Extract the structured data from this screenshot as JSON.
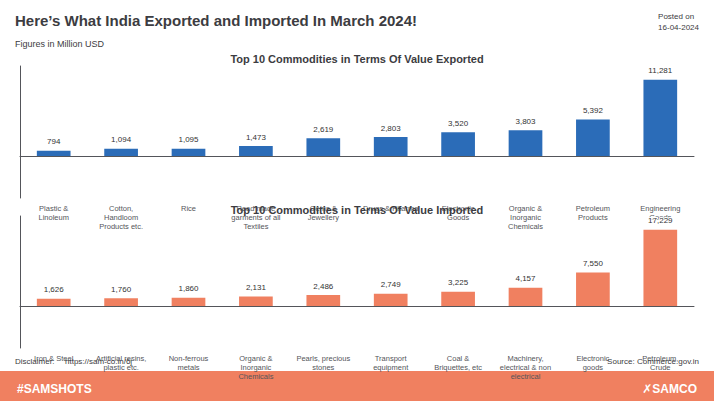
{
  "chart_data": [
    {
      "type": "bar",
      "title": "Top 10 Commodities in Terms Of Value Exported",
      "annotations": [
        "Here’s What India Exported and Imported In March 2024!",
        "Posted on\n16-04-2024",
        "Figures in Million USD"
      ],
      "categories": [
        "Plastic &\nLinoleum",
        "Cotton,\nHandloom\nProducts etc.",
        "Rice",
        "Read made\ngarments of all\nTextiles",
        "Gems &\nJewellery",
        "Drugs & Pharma",
        "Electronic\nGoods",
        "Organic &\nInorganic\nChemicals",
        "Petroleum\nProducts",
        "Engineering\nGoods"
      ],
      "values": [
        794,
        1094,
        1095,
        1473,
        2619,
        2803,
        3520,
        3803,
        5392,
        11281
      ],
      "value_labels": [
        "794",
        "1,094",
        "1,095",
        "1,473",
        "2,619",
        "2,803",
        "3,520",
        "3,803",
        "5,392",
        "11,281"
      ],
      "data_labels": true,
      "color": "#2B6CB8",
      "ylim": [
        -6204.55,
        13311.58
      ],
      "tick_labels": false,
      "grid": false
    },
    {
      "type": "bar",
      "title": "Top 10 Commodities in Terms Of Value Imported",
      "annotations": [
        "Disclaimer:",
        "https://sam-co.in/6j",
        "Source: Commerce.gov.in",
        "#SAMSHOTS",
        "✗SAMCO"
      ],
      "categories": [
        "Iron & Steel",
        "Artificial resins,\nplastic etc.",
        "Non-ferrous\nmetals",
        "Organic &\nInorganic\nChemicals",
        "Pearls, precious\nstones",
        "Transport\nequipment",
        "Coal &\nBriquettes, etc",
        "Machinery,\nelectrical & non\nelectrical",
        "Electronic\ngoods",
        "Petroleum,\nCrude"
      ],
      "values": [
        1626,
        1760,
        1860,
        2131,
        2486,
        2749,
        3225,
        4157,
        7550,
        17229
      ],
      "value_labels": [
        "1,626",
        "1,760",
        "1,860",
        "2,131",
        "2,486",
        "2,749",
        "3,225",
        "4,157",
        "7,550",
        "17,229"
      ],
      "data_labels": true,
      "color": "#F08060",
      "ylim": [
        -9475.95,
        20330.22
      ],
      "tick_labels": false,
      "grid": false
    }
  ]
}
